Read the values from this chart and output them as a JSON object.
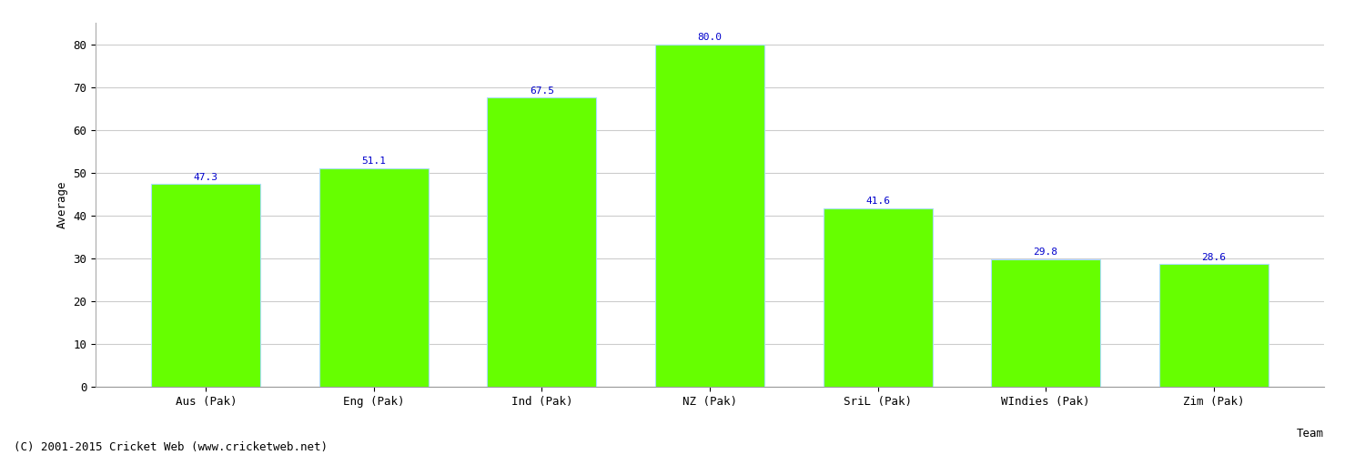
{
  "categories": [
    "Aus (Pak)",
    "Eng (Pak)",
    "Ind (Pak)",
    "NZ (Pak)",
    "SriL (Pak)",
    "WIndies (Pak)",
    "Zim (Pak)"
  ],
  "values": [
    47.3,
    51.1,
    67.5,
    80.0,
    41.6,
    29.8,
    28.6
  ],
  "bar_color": "#66ff00",
  "bar_edge_color": "#aaddff",
  "value_color": "#0000cc",
  "xlabel": "Team",
  "ylabel": "Average",
  "ylim": [
    0,
    85
  ],
  "yticks": [
    0,
    10,
    20,
    30,
    40,
    50,
    60,
    70,
    80
  ],
  "grid_color": "#cccccc",
  "background_color": "#ffffff",
  "footer_text": "(C) 2001-2015 Cricket Web (www.cricketweb.net)",
  "footer_fontsize": 9,
  "value_fontsize": 8,
  "axis_label_fontsize": 9,
  "tick_fontsize": 9,
  "bar_width": 0.65
}
